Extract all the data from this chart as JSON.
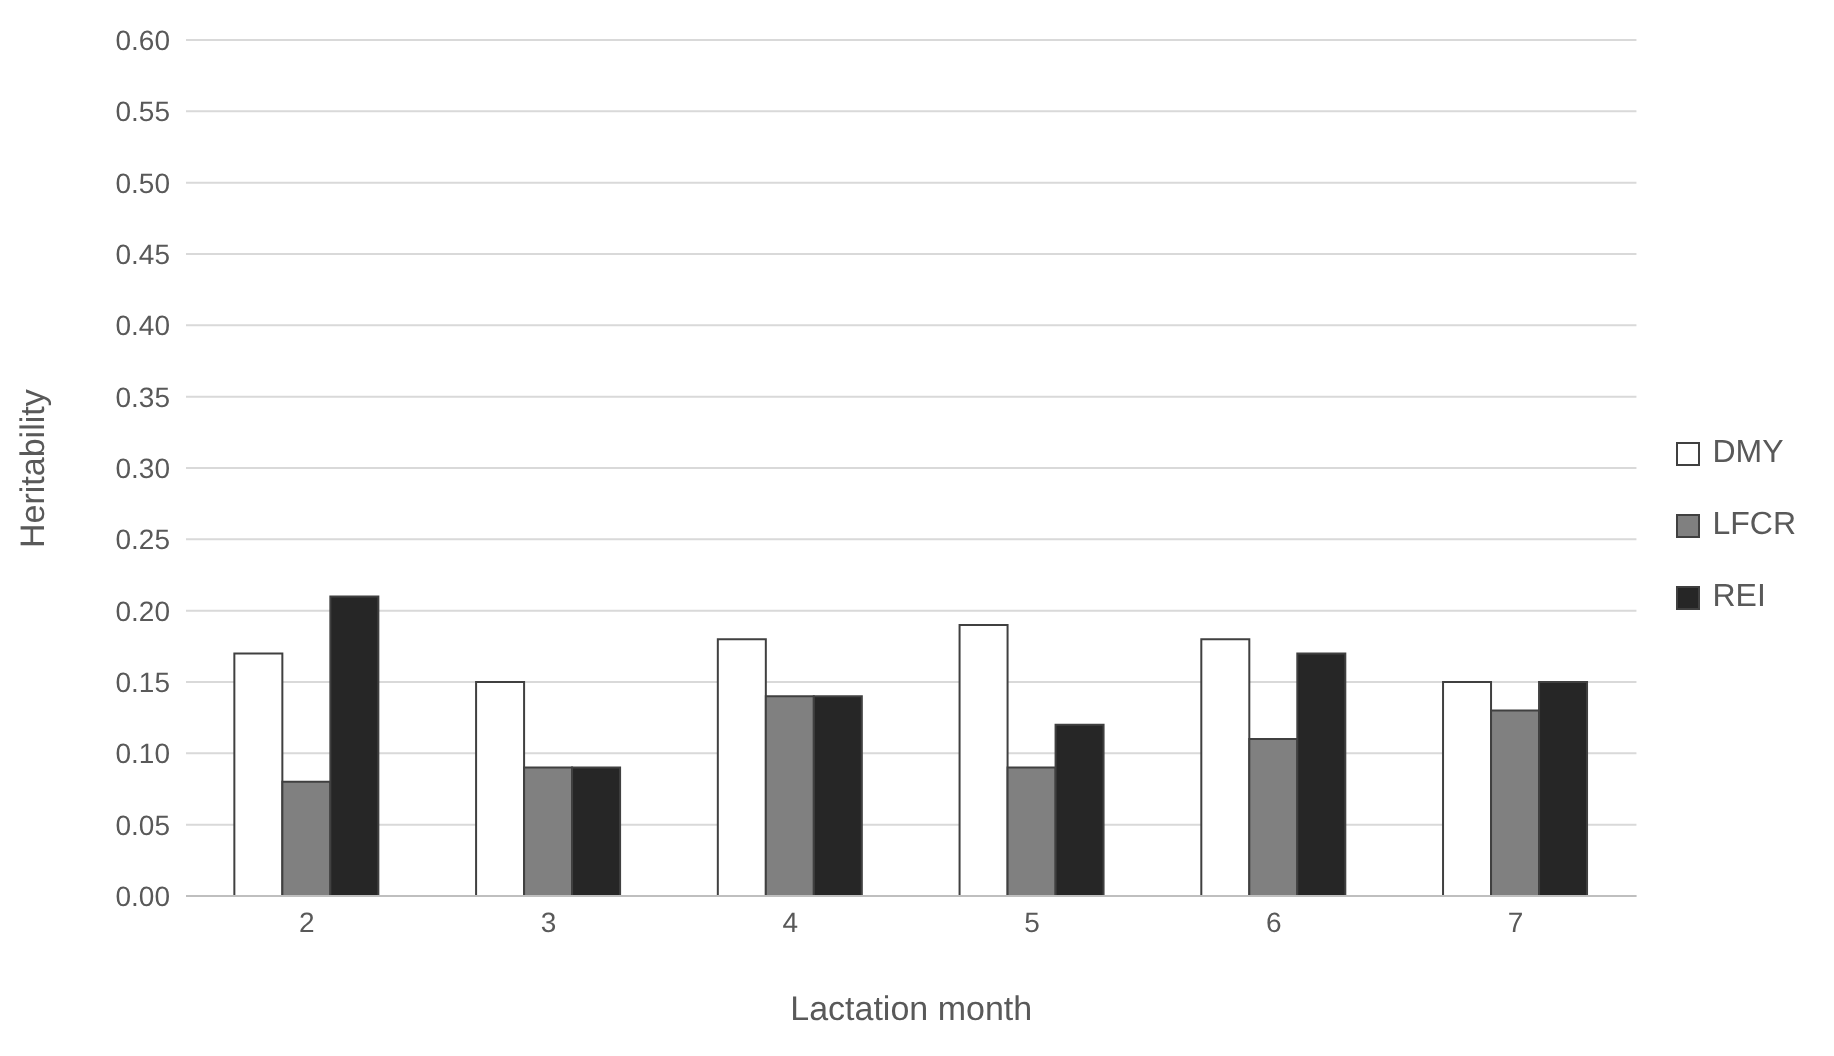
{
  "chart_data": {
    "type": "bar",
    "xlabel": "Lactation month",
    "ylabel": "Heritability",
    "categories": [
      "2",
      "3",
      "4",
      "5",
      "6",
      "7"
    ],
    "series": [
      {
        "name": "DMY",
        "color": "#ffffff",
        "values": [
          0.17,
          0.15,
          0.18,
          0.19,
          0.18,
          0.15
        ]
      },
      {
        "name": "LFCR",
        "color": "#808080",
        "values": [
          0.08,
          0.09,
          0.14,
          0.09,
          0.11,
          0.13
        ]
      },
      {
        "name": "REI",
        "color": "#262626",
        "values": [
          0.21,
          0.09,
          0.14,
          0.12,
          0.17,
          0.15
        ]
      }
    ],
    "ylim": [
      0,
      0.6
    ],
    "yticks": [
      {
        "value": 0,
        "label": "0.00"
      },
      {
        "value": 0.05,
        "label": "0.05"
      },
      {
        "value": 0.1,
        "label": "0.10"
      },
      {
        "value": 0.15,
        "label": "0.15"
      },
      {
        "value": 0.2,
        "label": "0.20"
      },
      {
        "value": 0.25,
        "label": "0.25"
      },
      {
        "value": 0.3,
        "label": "0.30"
      },
      {
        "value": 0.35,
        "label": "0.35"
      },
      {
        "value": 0.4,
        "label": "0.40"
      },
      {
        "value": 0.45,
        "label": "0.45"
      },
      {
        "value": 0.5,
        "label": "0.50"
      },
      {
        "value": 0.55,
        "label": "0.55"
      },
      {
        "value": 0.6,
        "label": "0.60"
      }
    ],
    "grid": "y",
    "legend": "right"
  }
}
